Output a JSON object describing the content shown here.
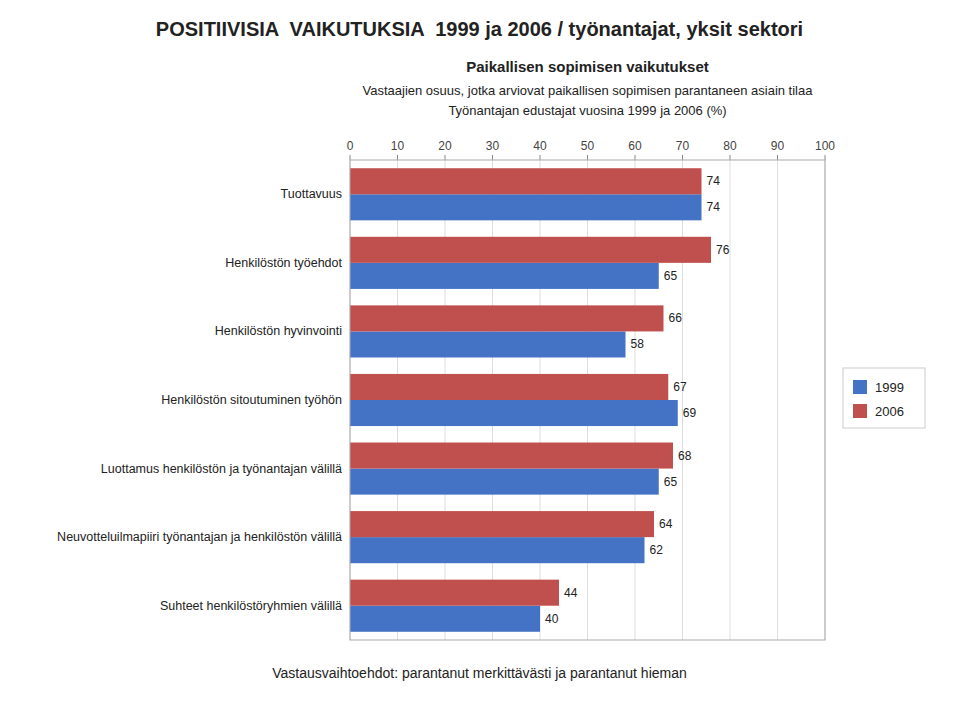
{
  "chart_data": {
    "type": "bar",
    "orientation": "horizontal",
    "title": "POSITIIVISIA  VAIKUTUKSIA  1999 ja 2006 / työnantajat, yksit sektori",
    "subtitle": [
      "Paikallisen sopimisen vaikutukset",
      "Vastaajien osuus, jotka arviovat paikallisen sopimisen parantaneen asiain tilaa",
      "Työnantajan edustajat vuosina 1999 ja 2006 (%)"
    ],
    "annotations": [
      "Vastausvaihtoehdot: parantanut merkittävästi ja parantanut hieman"
    ],
    "categories": [
      "Tuottavuus",
      "Henkilöstön työehdot",
      "Henkilöstön hyvinvointi",
      "Henkilöstön sitoutuminen työhön",
      "Luottamus henkilöstön ja työnantajan välillä",
      "Neuvotteluilmapiiri työnantajan ja henkilöstön välillä",
      "Suhteet henkilöstöryhmien välillä"
    ],
    "series": [
      {
        "name": "1999",
        "color": "#4472C4",
        "values": [
          74,
          65,
          58,
          69,
          65,
          62,
          40
        ]
      },
      {
        "name": "2006",
        "color": "#C0504D",
        "values": [
          74,
          76,
          66,
          67,
          68,
          64,
          44
        ]
      }
    ],
    "xlim": [
      0,
      100
    ],
    "xticks": [
      0,
      10,
      20,
      30,
      40,
      50,
      60,
      70,
      80,
      90,
      100
    ],
    "grid": true,
    "legend": "right",
    "data_labels": true
  }
}
